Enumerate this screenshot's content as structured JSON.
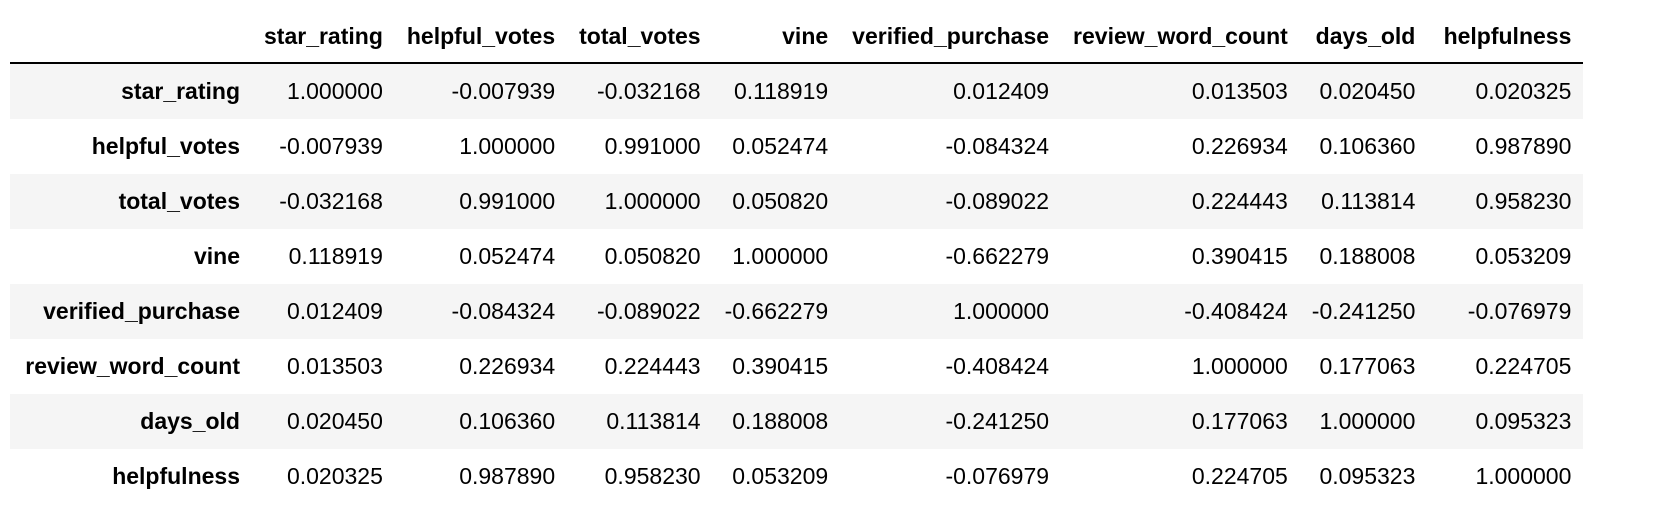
{
  "table": {
    "columns": [
      "star_rating",
      "helpful_votes",
      "total_votes",
      "vine",
      "verified_purchase",
      "review_word_count",
      "days_old",
      "helpfulness"
    ],
    "rows": [
      {
        "label": "star_rating",
        "values": [
          "1.000000",
          "-0.007939",
          "-0.032168",
          "0.118919",
          "0.012409",
          "0.013503",
          "0.020450",
          "0.020325"
        ]
      },
      {
        "label": "helpful_votes",
        "values": [
          "-0.007939",
          "1.000000",
          "0.991000",
          "0.052474",
          "-0.084324",
          "0.226934",
          "0.106360",
          "0.987890"
        ]
      },
      {
        "label": "total_votes",
        "values": [
          "-0.032168",
          "0.991000",
          "1.000000",
          "0.050820",
          "-0.089022",
          "0.224443",
          "0.113814",
          "0.958230"
        ]
      },
      {
        "label": "vine",
        "values": [
          "0.118919",
          "0.052474",
          "0.050820",
          "1.000000",
          "-0.662279",
          "0.390415",
          "0.188008",
          "0.053209"
        ]
      },
      {
        "label": "verified_purchase",
        "values": [
          "0.012409",
          "-0.084324",
          "-0.089022",
          "-0.662279",
          "1.000000",
          "-0.408424",
          "-0.241250",
          "-0.076979"
        ]
      },
      {
        "label": "review_word_count",
        "values": [
          "0.013503",
          "0.226934",
          "0.224443",
          "0.390415",
          "-0.408424",
          "1.000000",
          "0.177063",
          "0.224705"
        ]
      },
      {
        "label": "days_old",
        "values": [
          "0.020450",
          "0.106360",
          "0.113814",
          "0.188008",
          "-0.241250",
          "0.177063",
          "1.000000",
          "0.095323"
        ]
      },
      {
        "label": "helpfulness",
        "values": [
          "0.020325",
          "0.987890",
          "0.958230",
          "0.053209",
          "-0.076979",
          "0.224705",
          "0.095323",
          "1.000000"
        ]
      }
    ]
  },
  "colors": {
    "stripe": "#f5f5f5",
    "text": "#000000",
    "header_rule": "#000000"
  }
}
